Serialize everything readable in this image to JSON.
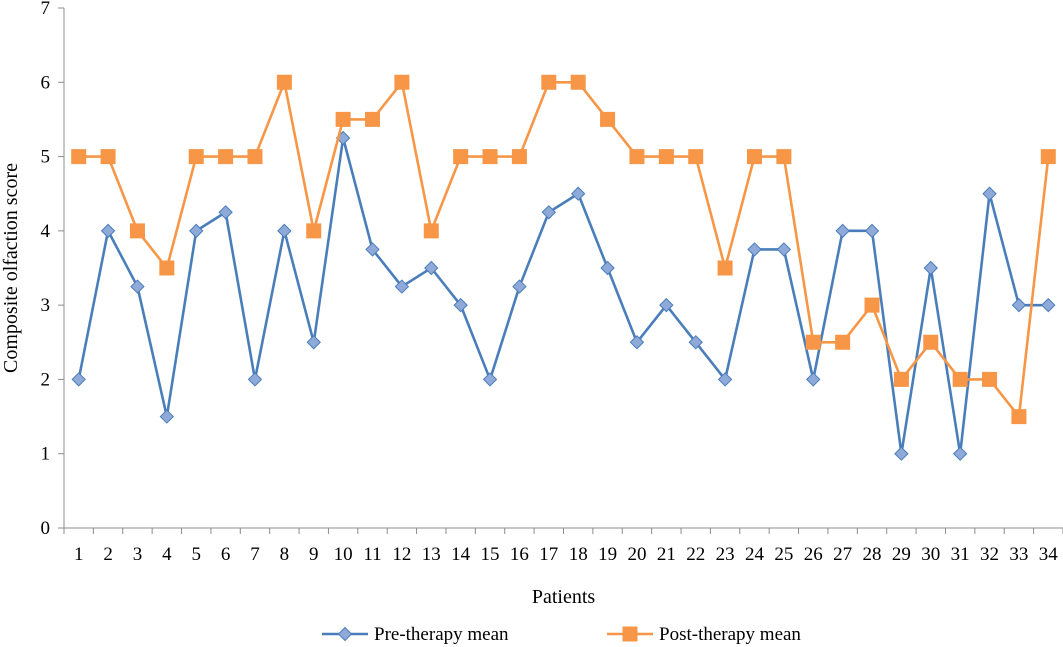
{
  "chart_data": {
    "type": "line",
    "xlabel": "Patients",
    "ylabel": "Composite olfaction score",
    "ylim": [
      0,
      7
    ],
    "yticks": [
      "0",
      "1",
      "2",
      "3",
      "4",
      "5",
      "6",
      "7"
    ],
    "categories": [
      "1",
      "2",
      "3",
      "4",
      "5",
      "6",
      "7",
      "8",
      "9",
      "10",
      "11",
      "12",
      "13",
      "14",
      "15",
      "16",
      "17",
      "18",
      "19",
      "20",
      "21",
      "22",
      "23",
      "24",
      "25",
      "26",
      "27",
      "28",
      "29",
      "30",
      "31",
      "32",
      "33",
      "34"
    ],
    "grid": false,
    "legend_position": "bottom",
    "series": [
      {
        "name": "Pre-therapy mean",
        "color": "#4a7ebb",
        "marker_color": "#8fa9d9",
        "marker": "diamond",
        "values": [
          2,
          4,
          3.25,
          1.5,
          4,
          4.25,
          2,
          4,
          2.5,
          5.25,
          3.75,
          3.25,
          3.5,
          3,
          2,
          3.25,
          4.25,
          4.5,
          3.5,
          2.5,
          3,
          2.5,
          2,
          3.75,
          3.75,
          2,
          4,
          4,
          1,
          3.5,
          1,
          4.5,
          3,
          3
        ]
      },
      {
        "name": "Post-therapy mean",
        "color": "#f79646",
        "marker_color": "#f79646",
        "marker": "square",
        "values": [
          5,
          5,
          4,
          3.5,
          5,
          5,
          5,
          6,
          4,
          5.5,
          5.5,
          6,
          4,
          5,
          5,
          5,
          6,
          6,
          5.5,
          5,
          5,
          5,
          3.5,
          5,
          5,
          2.5,
          2.5,
          3,
          2,
          2.5,
          2,
          2,
          1.5,
          5
        ]
      }
    ]
  }
}
